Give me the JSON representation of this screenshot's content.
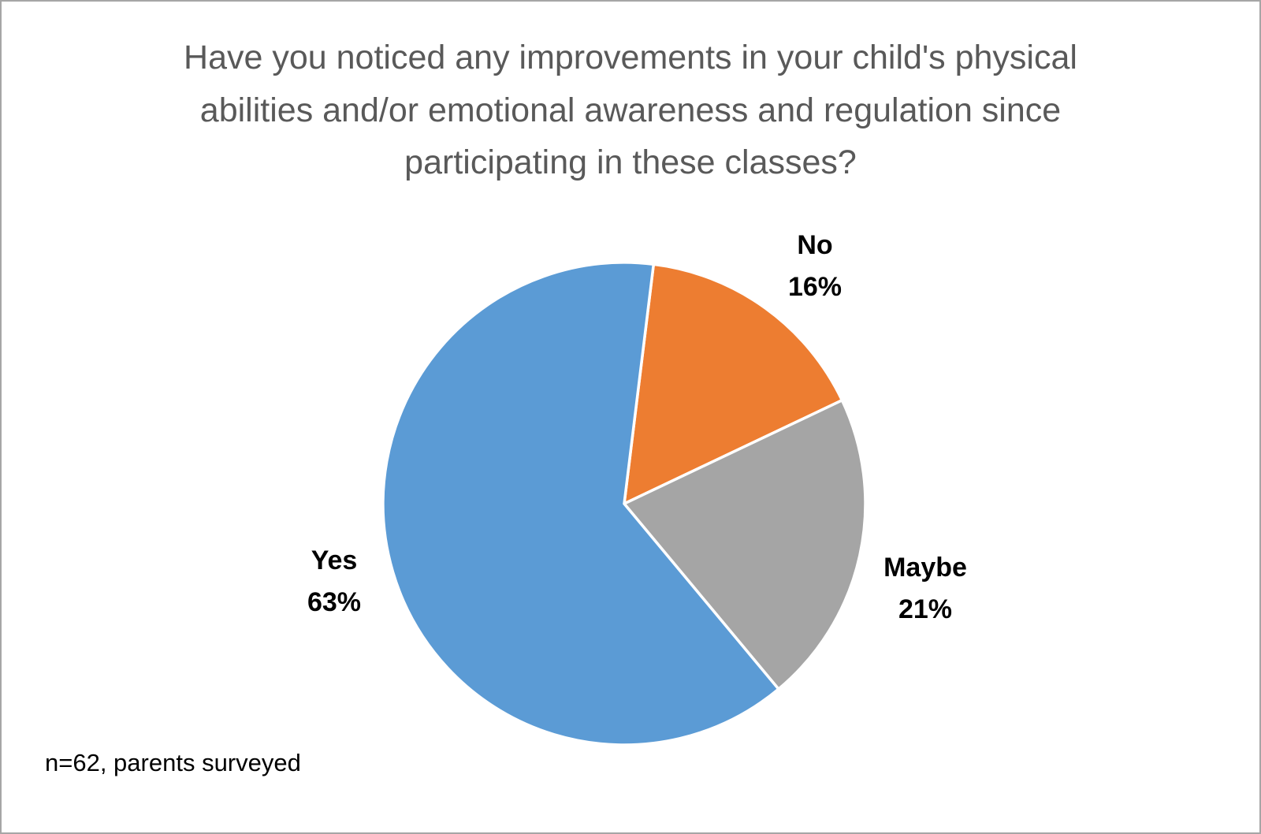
{
  "chart_data": {
    "type": "pie",
    "title": "Have you noticed any improvements in your child's physical abilities and/or emotional awareness and regulation since participating in these classes?",
    "note": "n=62, parents surveyed",
    "legend": "none",
    "labels": "outside",
    "start_angle_deg": 7,
    "direction": "clockwise",
    "slice_border_color": "#ffffff",
    "slices": [
      {
        "label": "No",
        "value": 16,
        "percent_label": "16%",
        "color": "#ED7D31"
      },
      {
        "label": "Maybe",
        "value": 21,
        "percent_label": "21%",
        "color": "#A5A5A5"
      },
      {
        "label": "Yes",
        "value": 63,
        "percent_label": "63%",
        "color": "#5B9BD5"
      }
    ]
  }
}
